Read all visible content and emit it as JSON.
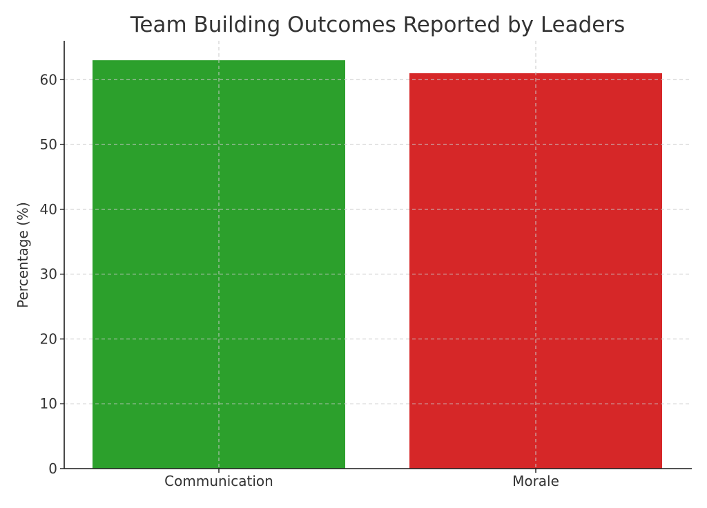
{
  "chart_data": {
    "type": "bar",
    "title": "Team Building Outcomes Reported by Leaders",
    "xlabel": "",
    "ylabel": "Percentage (%)",
    "categories": [
      "Communication",
      "Morale"
    ],
    "values": [
      63,
      61
    ],
    "colors": [
      "#2ca02c",
      "#d62728"
    ],
    "ylim": [
      0,
      66
    ],
    "yticks": [
      0,
      10,
      20,
      30,
      40,
      50,
      60
    ],
    "grid": true
  }
}
